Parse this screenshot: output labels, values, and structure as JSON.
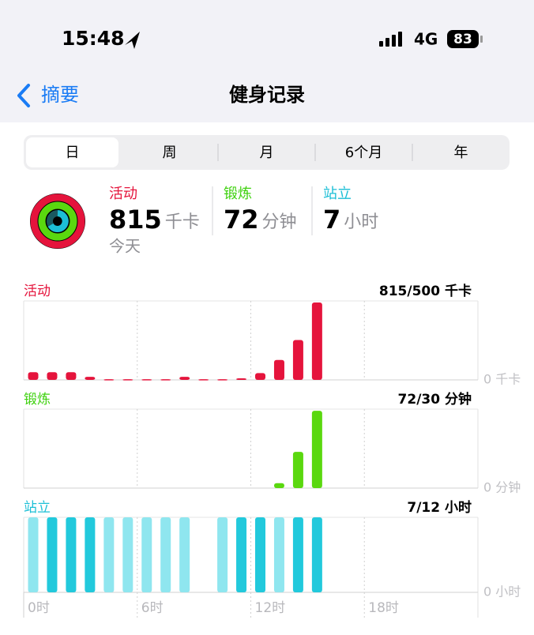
{
  "status_bar": {
    "time": "15:48",
    "network": "4G",
    "battery": "83"
  },
  "nav": {
    "back": "摘要",
    "title": "健身记录"
  },
  "segments": {
    "items": [
      "日",
      "周",
      "月",
      "6个月",
      "年"
    ],
    "selected": 0
  },
  "summary": {
    "date": "今天",
    "metrics": [
      {
        "label": "活动",
        "value": 815,
        "unit": "千卡",
        "color": "#e5143c"
      },
      {
        "label": "锻炼",
        "value": 72,
        "unit": "分钟",
        "color": "#3fd10f"
      },
      {
        "label": "站立",
        "value": 7,
        "unit": "小时",
        "color": "#1cbfd6"
      }
    ]
  },
  "charts": [
    {
      "label": "活动",
      "goal": "815/500 千卡",
      "axis_label": "0 千卡",
      "color": "#e5143c",
      "ylim": [
        0,
        360
      ],
      "values": [
        35,
        35,
        35,
        14,
        3,
        3,
        3,
        3,
        14,
        3,
        3,
        7,
        31,
        91,
        182,
        353,
        null,
        null,
        null,
        null,
        null,
        null,
        null,
        null
      ]
    },
    {
      "label": "锻炼",
      "goal": "72/30 分钟",
      "axis_label": "0 分钟",
      "color": "#5ad80f",
      "ylim": [
        0,
        48
      ],
      "values": [
        null,
        null,
        null,
        null,
        null,
        null,
        null,
        null,
        null,
        null,
        null,
        null,
        null,
        3,
        22,
        47,
        null,
        null,
        null,
        null,
        null,
        null,
        null,
        null
      ]
    },
    {
      "label": "站立",
      "goal": "7/12 小时",
      "axis_label": "0 小时",
      "color": "#1cbfd6",
      "ylim": [
        0,
        1
      ],
      "values": [
        1,
        1,
        1,
        1,
        1,
        1,
        1,
        1,
        1,
        null,
        1,
        1,
        1,
        1,
        1,
        1,
        null,
        null,
        null,
        null,
        null,
        null,
        null,
        null
      ],
      "bar_colors": [
        "#8fe6ef",
        "#22c9dc",
        "#22c9dc",
        "#22c9dc",
        "#8fe6ef",
        "#8fe6ef",
        "#8fe6ef",
        "#8fe6ef",
        "#8fe6ef",
        null,
        "#8fe6ef",
        "#22c9dc",
        "#22c9dc",
        "#8fe6ef",
        "#22c9dc",
        "#22c9dc",
        null,
        null,
        null,
        null,
        null,
        null,
        null,
        null
      ]
    }
  ],
  "x_labels": [
    {
      "hour": 0,
      "label": "0时"
    },
    {
      "hour": 6,
      "label": "6时"
    },
    {
      "hour": 12,
      "label": "12时"
    },
    {
      "hour": 18,
      "label": "18时"
    }
  ]
}
